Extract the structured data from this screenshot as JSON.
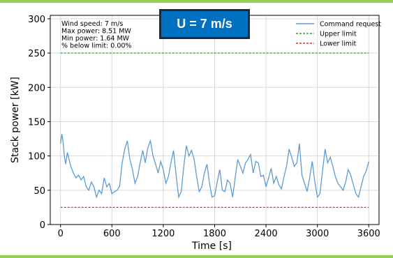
{
  "frame": {
    "accent_color": "#92d050"
  },
  "badge": {
    "label": "U = 7 m/s",
    "color": "#0070c0"
  },
  "stats": [
    "Wind speed: 7 m/s",
    "Max power: 8.51 MW",
    "Min power: 1.64 MW",
    "% below limit: 0.00%"
  ],
  "chart_data": {
    "type": "line",
    "title": "",
    "xlabel": "Time [s]",
    "ylabel": "Stack power [kW]",
    "xlim": [
      -120,
      3720
    ],
    "ylim": [
      0,
      305
    ],
    "xticks": [
      0,
      600,
      1200,
      1800,
      2400,
      3000,
      3600
    ],
    "yticks": [
      0,
      50,
      100,
      150,
      200,
      250,
      300
    ],
    "grid": true,
    "legend_position": "top-right",
    "series": [
      {
        "name": "Command request",
        "color": "#5b9bd5",
        "style": "solid",
        "x": [
          0,
          15,
          30,
          45,
          60,
          80,
          100,
          120,
          150,
          180,
          210,
          240,
          270,
          300,
          330,
          360,
          390,
          420,
          450,
          480,
          510,
          540,
          570,
          600,
          630,
          660,
          690,
          720,
          750,
          780,
          810,
          840,
          870,
          900,
          930,
          960,
          990,
          1020,
          1050,
          1080,
          1110,
          1140,
          1170,
          1200,
          1230,
          1260,
          1290,
          1320,
          1350,
          1380,
          1410,
          1440,
          1470,
          1500,
          1530,
          1560,
          1590,
          1620,
          1650,
          1680,
          1710,
          1740,
          1770,
          1800,
          1830,
          1860,
          1890,
          1920,
          1950,
          1980,
          2010,
          2040,
          2070,
          2100,
          2130,
          2160,
          2190,
          2220,
          2250,
          2280,
          2310,
          2340,
          2370,
          2400,
          2430,
          2460,
          2490,
          2520,
          2550,
          2580,
          2610,
          2640,
          2670,
          2700,
          2730,
          2760,
          2790,
          2820,
          2850,
          2880,
          2910,
          2940,
          2970,
          3000,
          3030,
          3060,
          3090,
          3120,
          3150,
          3180,
          3210,
          3240,
          3270,
          3300,
          3330,
          3360,
          3390,
          3420,
          3450,
          3480,
          3510,
          3540,
          3570,
          3600
        ],
        "y": [
          118,
          132,
          120,
          100,
          88,
          105,
          95,
          85,
          75,
          68,
          72,
          65,
          70,
          55,
          50,
          62,
          55,
          40,
          50,
          45,
          68,
          55,
          60,
          45,
          48,
          50,
          56,
          90,
          110,
          122,
          95,
          80,
          60,
          70,
          90,
          108,
          90,
          112,
          122,
          100,
          88,
          75,
          92,
          80,
          60,
          70,
          90,
          108,
          72,
          40,
          48,
          85,
          115,
          100,
          108,
          95,
          70,
          48,
          55,
          75,
          88,
          60,
          40,
          42,
          62,
          80,
          50,
          48,
          65,
          60,
          40,
          68,
          95,
          85,
          75,
          90,
          95,
          102,
          75,
          92,
          90,
          70,
          72,
          55,
          68,
          82,
          60,
          70,
          58,
          52,
          70,
          85,
          110,
          98,
          85,
          90,
          118,
          72,
          60,
          48,
          68,
          92,
          62,
          40,
          45,
          78,
          110,
          90,
          98,
          85,
          70,
          60,
          55,
          50,
          62,
          80,
          72,
          58,
          45,
          40,
          55,
          70,
          78,
          92
        ],
        "y_rendered_note": ""
      },
      {
        "name": "Upper limit",
        "color": "#3a9a3a",
        "style": "dashed",
        "x": [
          0,
          3600
        ],
        "y": [
          250,
          250
        ]
      },
      {
        "name": "Lower limit",
        "color": "#e0303a",
        "style": "dashed",
        "x": [
          0,
          3600
        ],
        "y": [
          25,
          25
        ]
      }
    ]
  }
}
